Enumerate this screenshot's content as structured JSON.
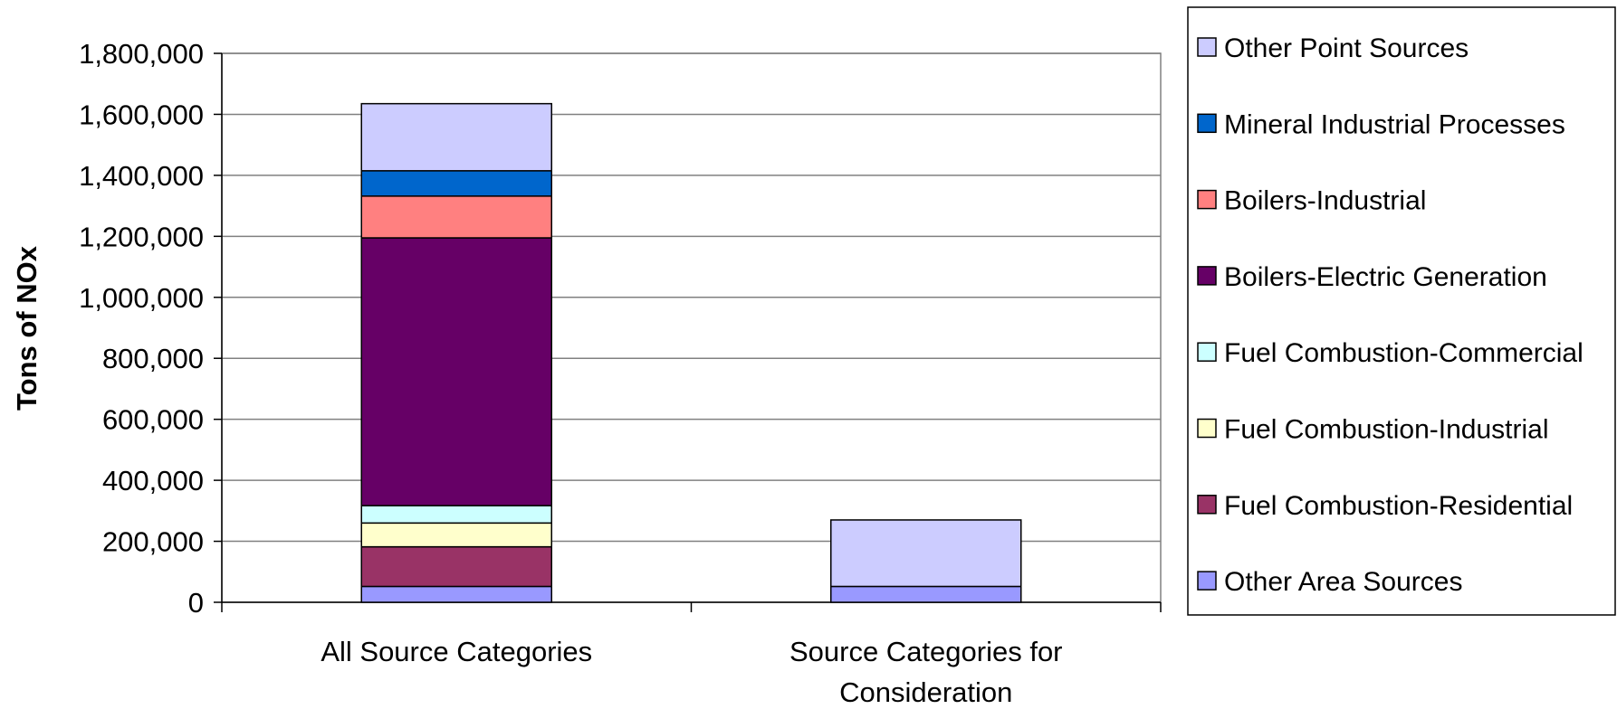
{
  "chart_data": {
    "type": "bar",
    "stacked": true,
    "categories": [
      [
        "All Source Categories"
      ],
      [
        "Source Categories for",
        "Consideration"
      ]
    ],
    "ylabel": "Tons of NOx",
    "ylim": [
      0,
      1800000
    ],
    "yticks": [
      0,
      200000,
      400000,
      600000,
      800000,
      1000000,
      1200000,
      1400000,
      1600000,
      1800000
    ],
    "ytick_labels": [
      "0",
      "200,000",
      "400,000",
      "600,000",
      "800,000",
      "1,000,000",
      "1,200,000",
      "1,400,000",
      "1,600,000",
      "1,800,000"
    ],
    "grid": true,
    "legend_position": "right",
    "series": [
      {
        "name": "Other Area Sources",
        "color": "#9999ff",
        "values": [
          52000,
          52000
        ]
      },
      {
        "name": "Fuel Combustion-Residential",
        "color": "#993366",
        "values": [
          130000,
          0
        ]
      },
      {
        "name": "Fuel Combustion-Industrial",
        "color": "#ffffcc",
        "values": [
          78000,
          0
        ]
      },
      {
        "name": "Fuel Combustion-Commercial",
        "color": "#ccffff",
        "values": [
          57000,
          0
        ]
      },
      {
        "name": "Boilers-Electric Generation",
        "color": "#660066",
        "values": [
          878000,
          0
        ]
      },
      {
        "name": "Boilers-Industrial",
        "color": "#ff8080",
        "values": [
          137000,
          0
        ]
      },
      {
        "name": "Mineral Industrial Processes",
        "color": "#0066cc",
        "values": [
          83000,
          0
        ]
      },
      {
        "name": "Other Point Sources",
        "color": "#ccccff",
        "values": [
          220000,
          218000
        ]
      }
    ]
  }
}
